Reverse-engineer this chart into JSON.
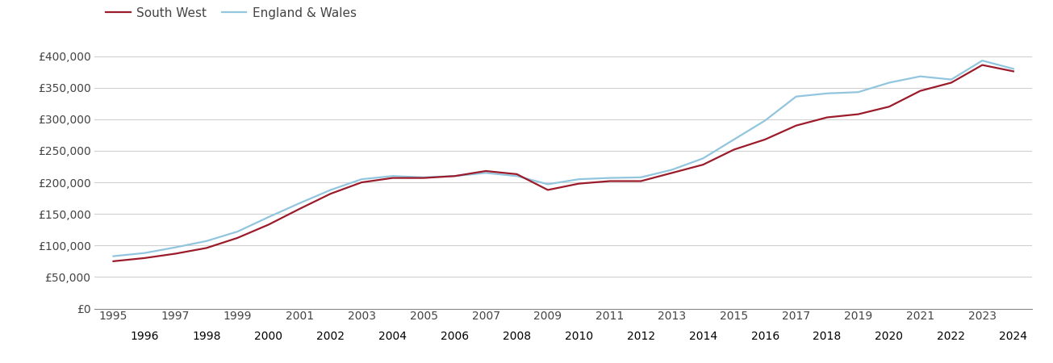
{
  "south_west": {
    "years": [
      1995,
      1996,
      1997,
      1998,
      1999,
      2000,
      2001,
      2002,
      2003,
      2004,
      2005,
      2006,
      2007,
      2008,
      2009,
      2010,
      2011,
      2012,
      2013,
      2014,
      2015,
      2016,
      2017,
      2018,
      2019,
      2020,
      2021,
      2022,
      2023,
      2024
    ],
    "values": [
      75000,
      80000,
      87000,
      96000,
      112000,
      133000,
      158000,
      182000,
      200000,
      207000,
      207000,
      210000,
      218000,
      213000,
      188000,
      198000,
      202000,
      202000,
      215000,
      228000,
      252000,
      268000,
      290000,
      303000,
      308000,
      320000,
      345000,
      358000,
      386000,
      376000
    ]
  },
  "england_wales": {
    "years": [
      1995,
      1996,
      1997,
      1998,
      1999,
      2000,
      2001,
      2002,
      2003,
      2004,
      2005,
      2006,
      2007,
      2008,
      2009,
      2010,
      2011,
      2012,
      2013,
      2014,
      2015,
      2016,
      2017,
      2018,
      2019,
      2020,
      2021,
      2022,
      2023,
      2024
    ],
    "values": [
      83000,
      88000,
      97000,
      107000,
      122000,
      145000,
      167000,
      188000,
      205000,
      210000,
      208000,
      210000,
      215000,
      210000,
      197000,
      205000,
      207000,
      208000,
      220000,
      238000,
      268000,
      298000,
      336000,
      341000,
      343000,
      358000,
      368000,
      363000,
      393000,
      380000
    ]
  },
  "sw_color": "#9B1B2A",
  "ew_color": "#92C5DE",
  "sw_label": "South West",
  "ew_label": "England & Wales",
  "ylim": [
    0,
    420000
  ],
  "yticks": [
    0,
    50000,
    100000,
    150000,
    200000,
    250000,
    300000,
    350000,
    400000
  ],
  "ytick_labels": [
    "£0",
    "£50,000",
    "£100,000",
    "£150,000",
    "£200,000",
    "£250,000",
    "£300,000",
    "£350,000",
    "£400,000"
  ],
  "background_color": "#ffffff",
  "grid_color": "#d0d0d0",
  "line_width": 1.6,
  "odd_years": [
    1995,
    1997,
    1999,
    2001,
    2003,
    2005,
    2007,
    2009,
    2011,
    2013,
    2015,
    2017,
    2019,
    2021,
    2023
  ],
  "even_years": [
    1996,
    1998,
    2000,
    2002,
    2004,
    2006,
    2008,
    2010,
    2012,
    2014,
    2016,
    2018,
    2020,
    2022,
    2024
  ]
}
